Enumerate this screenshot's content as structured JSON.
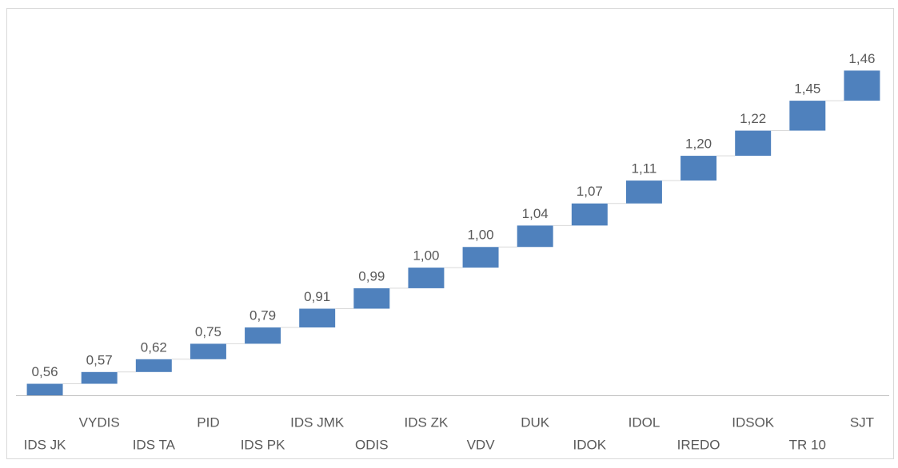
{
  "chart_data": {
    "type": "waterfall",
    "categories": [
      "IDS JK",
      "VYDIS",
      "IDS TA",
      "PID",
      "IDS PK",
      "IDS JMK",
      "ODIS",
      "IDS ZK",
      "VDV",
      "DUK",
      "IDOK",
      "IDOL",
      "IREDO",
      "IDSOK",
      "TR 10",
      "SJT"
    ],
    "values": [
      0.56,
      0.57,
      0.62,
      0.75,
      0.79,
      0.91,
      0.99,
      1.0,
      1.0,
      1.04,
      1.07,
      1.11,
      1.2,
      1.22,
      1.45,
      1.46
    ],
    "value_labels": [
      "0,56",
      "0,57",
      "0,62",
      "0,75",
      "0,79",
      "0,91",
      "0,99",
      "1,00",
      "1,00",
      "1,04",
      "1,07",
      "1,11",
      "1,20",
      "1,22",
      "1,45",
      "1,46"
    ],
    "color": "#4f81bd",
    "ylim": [
      0,
      18
    ]
  }
}
